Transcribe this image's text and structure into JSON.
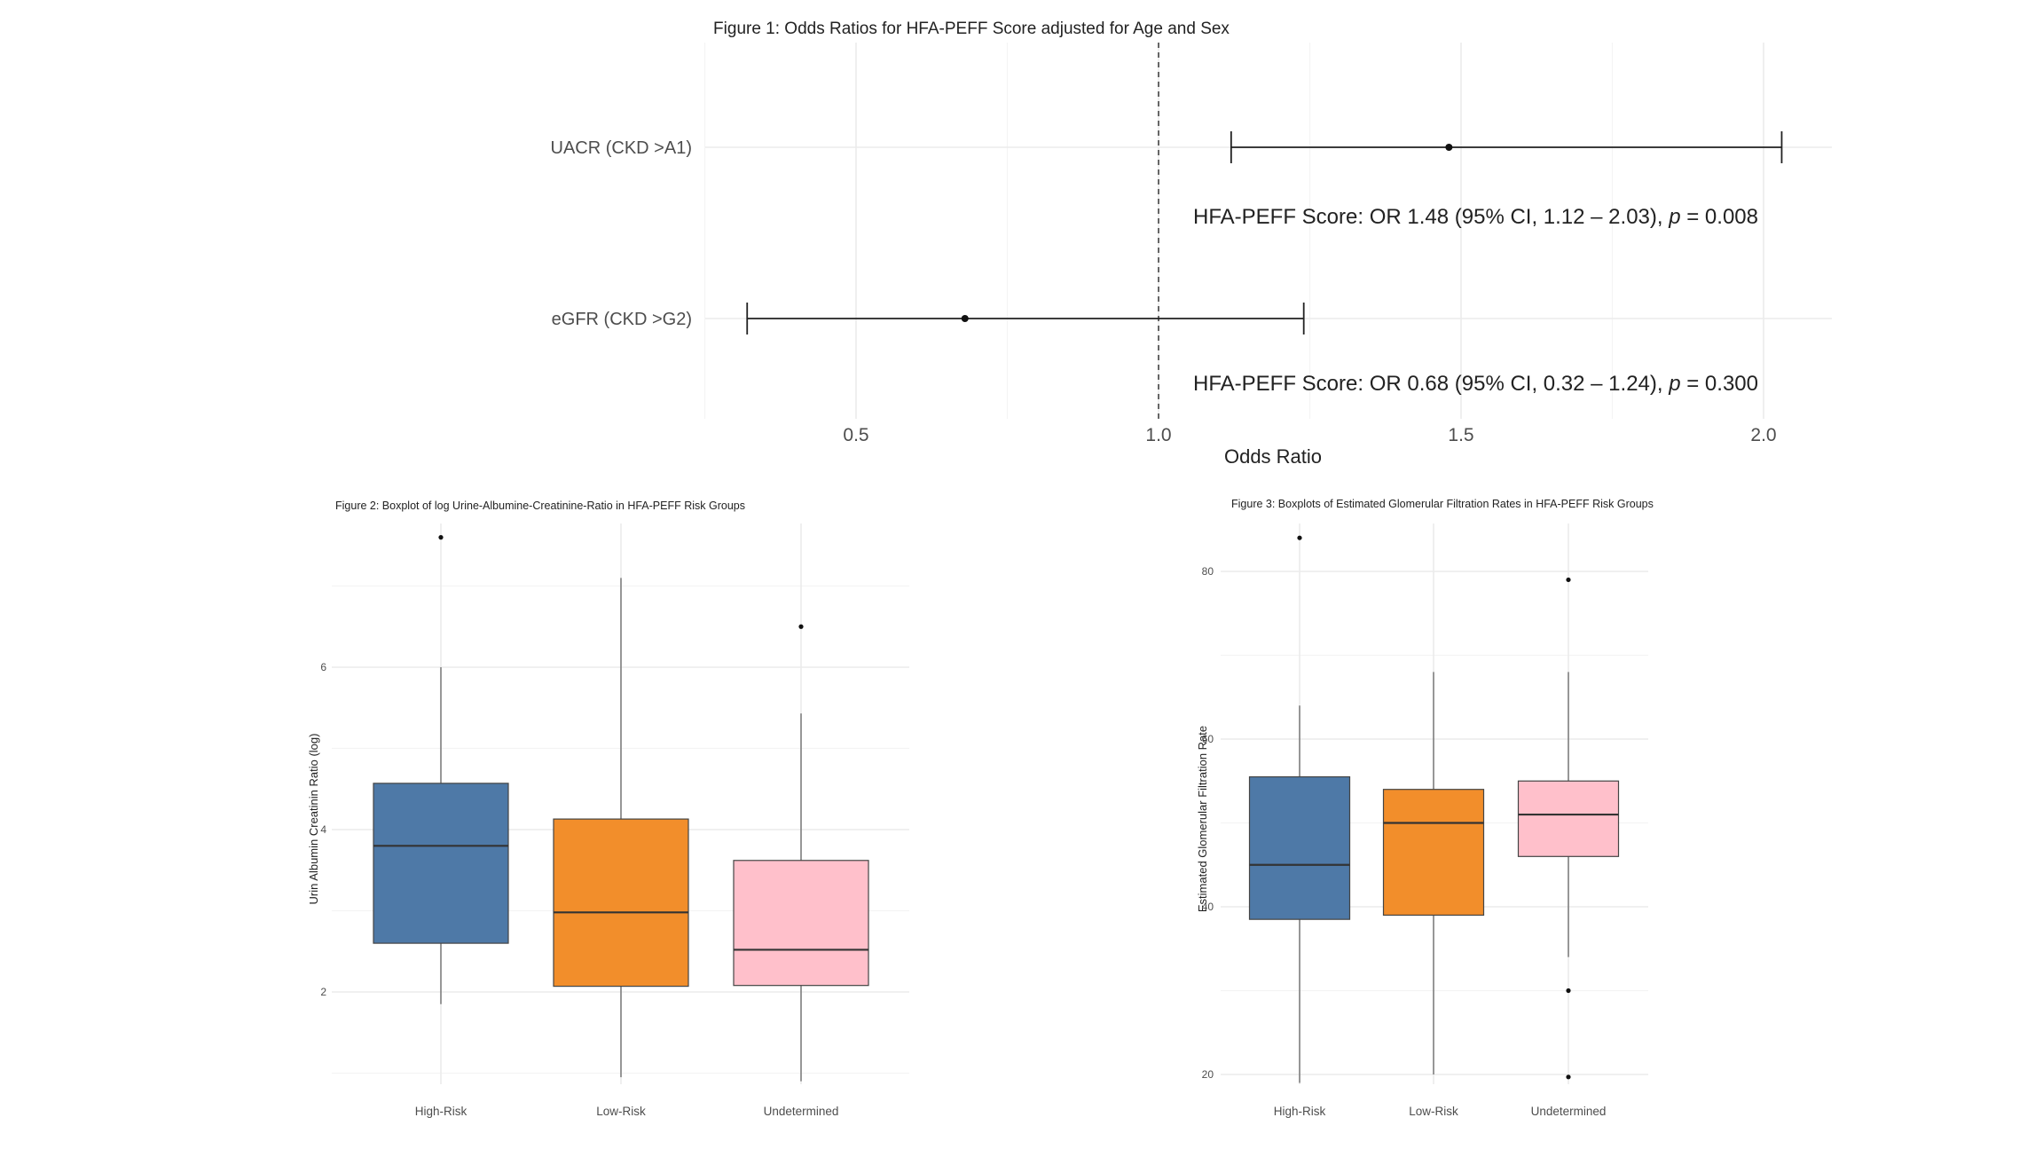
{
  "chart_data": [
    {
      "type": "forest",
      "title": "Figure 1: Odds Ratios for HFA-PEFF Score adjusted for Age and Sex",
      "xlabel": "Odds Ratio",
      "ylabel": "",
      "xlim": [
        0.25,
        2.1
      ],
      "xticks": [
        0.5,
        1.0,
        1.5,
        2.0
      ],
      "xtick_labels": [
        "0.5",
        "1.0",
        "1.5",
        "2.0"
      ],
      "reference_line": 1.0,
      "grid": true,
      "rows": [
        {
          "label": "UACR (CKD >A1)",
          "or": 1.48,
          "lower": 1.12,
          "upper": 2.03,
          "annotation_prefix": "HFA-PEFF Score: OR 1.48 (95% CI, 1.12 – 2.03), ",
          "annotation_p": "p",
          "annotation_suffix": " = 0.008"
        },
        {
          "label": "eGFR (CKD >G2)",
          "or": 0.68,
          "lower": 0.32,
          "upper": 1.24,
          "annotation_prefix": "HFA-PEFF Score: OR 0.68 (95% CI, 0.32 – 1.24), ",
          "annotation_p": "p",
          "annotation_suffix": " = 0.300"
        }
      ]
    },
    {
      "type": "box",
      "title": "Figure 2: Boxplot of log Urine-Albumine-Creatinine-Ratio in HFA-PEFF Risk Groups",
      "xlabel": "",
      "ylabel": "Urin Albumin Creatinin Ratio (log)",
      "ylim": [
        0.95,
        7.95
      ],
      "yticks": [
        2,
        4,
        6
      ],
      "categories": [
        "High-Risk",
        "Low-Risk",
        "Undetermined"
      ],
      "colors": [
        "#4e79a7",
        "#f28e2b",
        "#ffc0cb"
      ],
      "boxes": [
        {
          "min": 1.85,
          "q1": 2.6,
          "median": 3.8,
          "q3": 4.57,
          "max": 6.0,
          "outliers": [
            7.6
          ]
        },
        {
          "min": 0.95,
          "q1": 2.07,
          "median": 2.98,
          "q3": 4.13,
          "max": 7.1,
          "outliers": []
        },
        {
          "min": 0.9,
          "q1": 2.08,
          "median": 2.52,
          "q3": 3.62,
          "max": 5.43,
          "outliers": [
            6.5
          ]
        }
      ]
    },
    {
      "type": "box",
      "title": "Figure 3: Boxplots of Estimated Glomerular Filtration Rates in HFA-PEFF Risk Groups",
      "xlabel": "",
      "ylabel": "Estimated Glomerular Filtration Rate",
      "ylim": [
        19,
        86
      ],
      "yticks": [
        20,
        40,
        60,
        80
      ],
      "categories": [
        "High-Risk",
        "Low-Risk",
        "Undetermined"
      ],
      "colors": [
        "#4e79a7",
        "#f28e2b",
        "#ffc0cb"
      ],
      "boxes": [
        {
          "min": 19,
          "q1": 38.5,
          "median": 45,
          "q3": 55.5,
          "max": 64,
          "outliers": [
            84
          ]
        },
        {
          "min": 20,
          "q1": 39,
          "median": 50,
          "q3": 54,
          "max": 68,
          "outliers": []
        },
        {
          "min": 34,
          "q1": 46,
          "median": 51,
          "q3": 55,
          "max": 68,
          "outliers": [
            79,
            30,
            19.7
          ]
        }
      ]
    }
  ]
}
